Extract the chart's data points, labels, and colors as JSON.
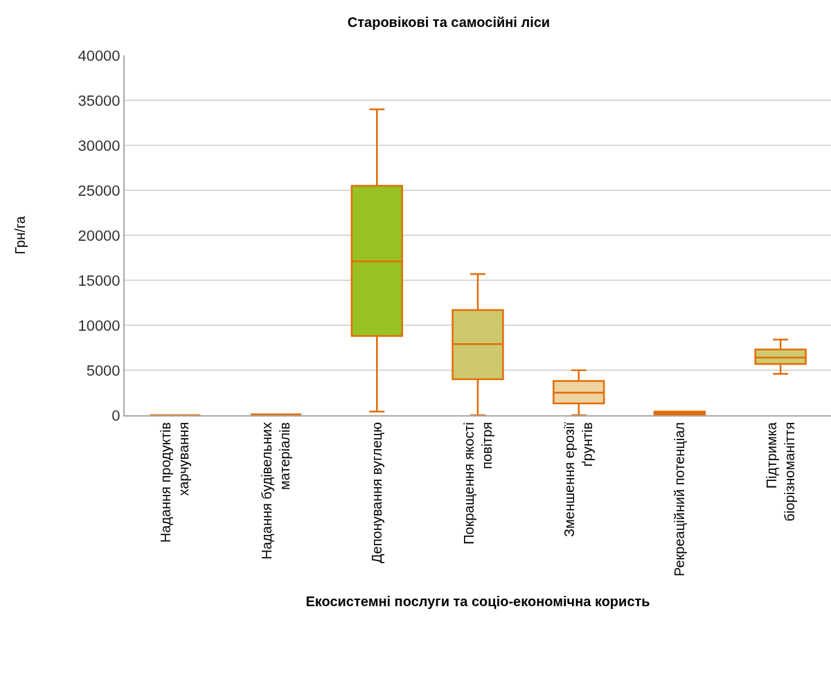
{
  "chart_data": {
    "type": "box",
    "title": "Старовікові та самосійні ліси",
    "xlabel": "Екосистемні послуги та соціо-економічна користь",
    "ylabel": "Грн/га",
    "categories": [
      "Надання продуктів\nхарчування",
      "Надання будівельних\nматеріалів",
      "Депонування вуглецю",
      "Покращення якості\nповітря",
      "Зменшення ерозії\nґрунтів",
      "Рекреаційний потенціал",
      "Підтримка\nбіорізноманіття"
    ],
    "series": [
      {
        "color": "#e36c0a",
        "colors": [
          "#e36c0a",
          "#e36c0a",
          "#98c224",
          "#cdc96c",
          "#eed3a0",
          "#e36c0a",
          "#cfcb70"
        ],
        "boxes": [
          {
            "low": 0,
            "q1": 0,
            "median": 0,
            "q3": 0,
            "high": 0
          },
          {
            "low": 100,
            "q1": 100,
            "median": 100,
            "q3": 100,
            "high": 100
          },
          {
            "low": 400,
            "q1": 8800,
            "median": 17100,
            "q3": 25500,
            "high": 34000
          },
          {
            "low": 0,
            "q1": 4000,
            "median": 7900,
            "q3": 11700,
            "high": 15700
          },
          {
            "low": 0,
            "q1": 1300,
            "median": 2500,
            "q3": 3800,
            "high": 5000
          },
          {
            "low": 0,
            "q1": 100,
            "median": 200,
            "q3": 400,
            "high": 400
          },
          {
            "low": 4600,
            "q1": 5700,
            "median": 6400,
            "q3": 7300,
            "high": 8400
          }
        ]
      }
    ],
    "ylim": [
      0,
      40000
    ],
    "yticks": [
      0,
      5000,
      10000,
      15000,
      20000,
      25000,
      30000,
      35000,
      40000
    ],
    "grid": "y"
  }
}
